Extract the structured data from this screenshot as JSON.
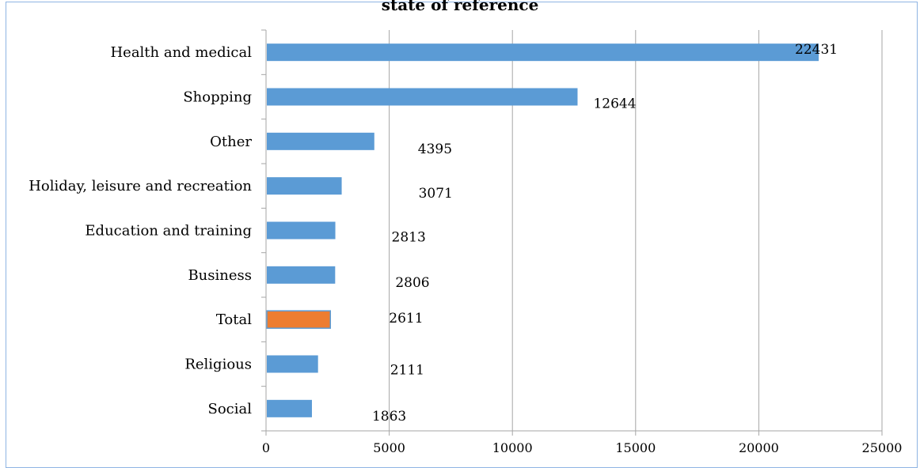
{
  "title_fragment": "state of reference",
  "chart_data": {
    "type": "bar",
    "orientation": "horizontal",
    "categories": [
      "Health and medical",
      "Shopping",
      "Other",
      "Holiday, leisure and recreation",
      "Education and training",
      "Business",
      "Total",
      "Religious",
      "Social"
    ],
    "values": [
      22431,
      12644,
      4395,
      3071,
      2813,
      2806,
      2611,
      2111,
      1863
    ],
    "data_labels": [
      "22431",
      "12644",
      "4395",
      "3071",
      "2813",
      "2806",
      "2611",
      "2111",
      "1863"
    ],
    "highlight_category": "Total",
    "xlim": [
      0,
      25000
    ],
    "xticks": [
      "0",
      "5000",
      "10000",
      "15000",
      "20000",
      "25000"
    ],
    "grid": true,
    "legend": "none",
    "colors": {
      "bar": "#5b9bd5",
      "highlight": "#ed7d31",
      "grid": "#a6a6a6",
      "frame": "#8eb4e3"
    }
  }
}
